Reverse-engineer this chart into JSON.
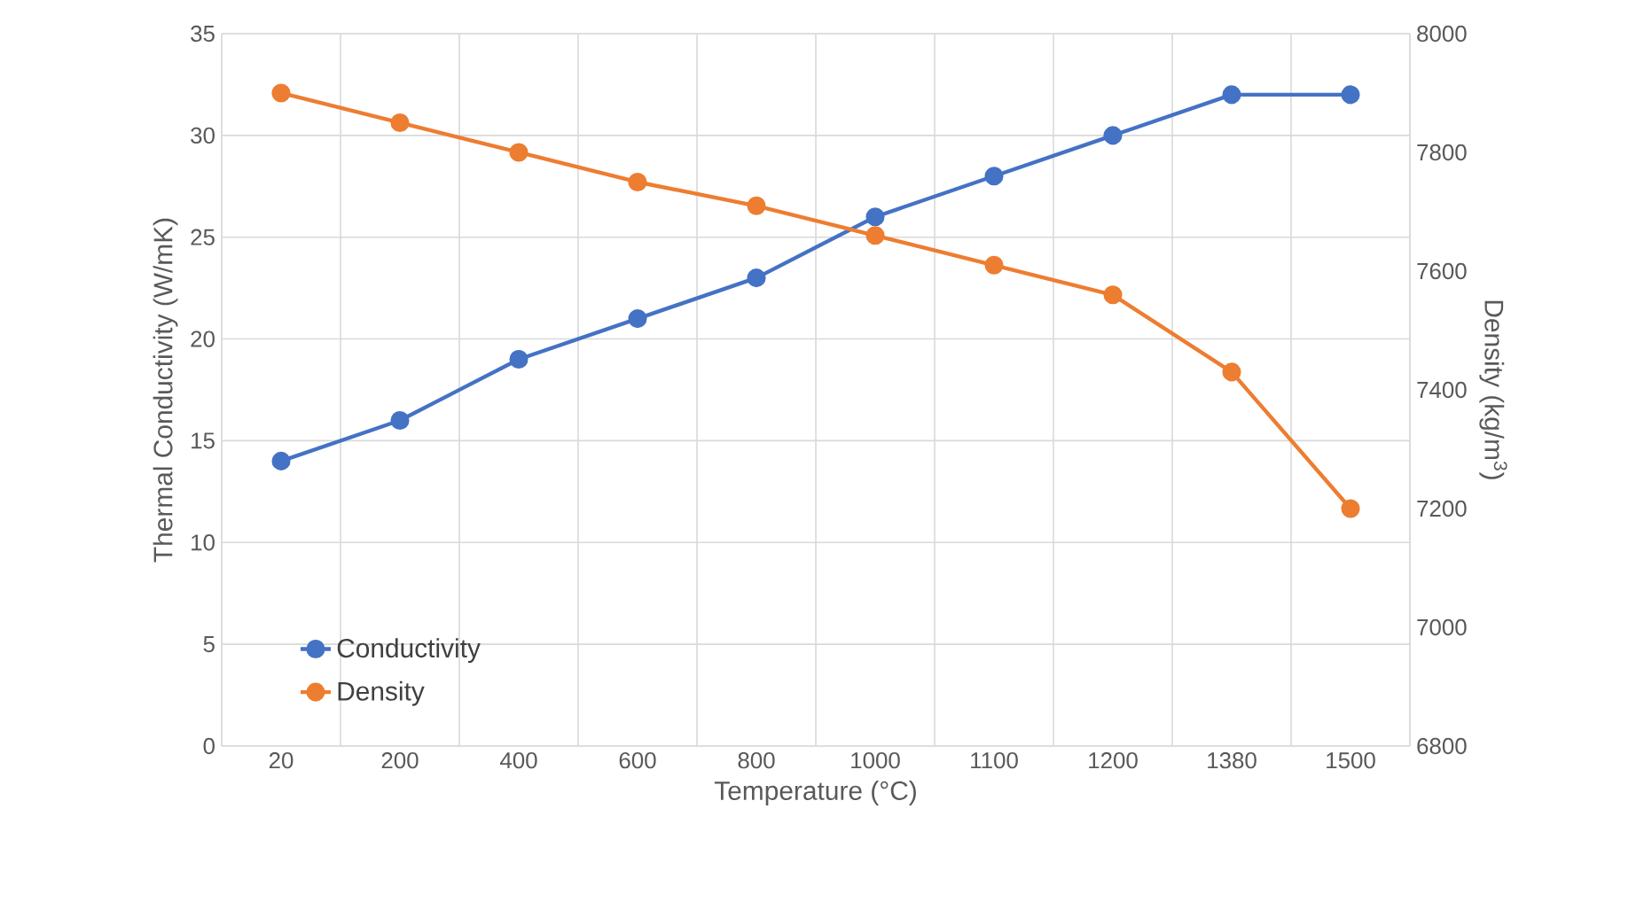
{
  "chart_data": {
    "type": "line",
    "xlabel": "Temperature (°C)",
    "ylabel": "Thermal Conductivity (W/mK)",
    "y2label": "Density (kg/m$^{3}$)",
    "categories": [
      "20",
      "200",
      "400",
      "600",
      "800",
      "1000",
      "1100",
      "1200",
      "1380",
      "1500"
    ],
    "series": [
      {
        "name": "Conductivity",
        "color": "#4472c4",
        "values": [
          14,
          16,
          19,
          21,
          23,
          26,
          28,
          30,
          32,
          32
        ]
      },
      {
        "name": "Density",
        "color": "#ed7d31",
        "axis": "y2",
        "values": [
          7900,
          7850,
          7800,
          7750,
          7710,
          7660,
          7610,
          7560,
          7430,
          7200
        ]
      }
    ],
    "ylim": [
      0,
      35
    ],
    "yticks": [
      0,
      5,
      10,
      15,
      20,
      25,
      30,
      35
    ],
    "y2lim": [
      6800,
      8000
    ],
    "y2ticks": [
      6800,
      7000,
      7200,
      7400,
      7600,
      7800,
      8000
    ],
    "grid": true,
    "legend": "bottom left",
    "marker": "circle",
    "line_style": "solid"
  }
}
